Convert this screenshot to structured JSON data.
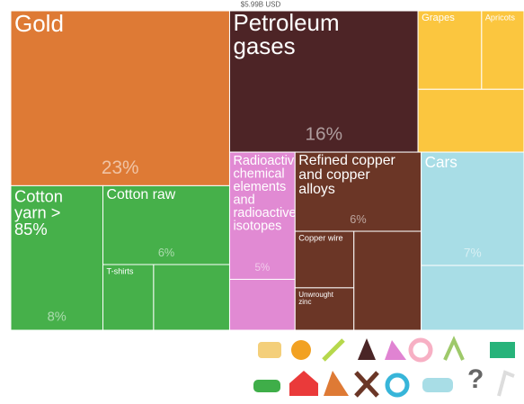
{
  "chart_data": {
    "type": "treemap",
    "subtitle": "$5.99B USD",
    "groups": [
      {
        "color": "#de7a35",
        "tiles": [
          {
            "label": "Gold",
            "value": 23,
            "value_label": "23%"
          }
        ]
      },
      {
        "color": "#46b04a",
        "tiles": [
          {
            "label": "Cotton yarn > 85%",
            "value": 8,
            "value_label": "8%"
          },
          {
            "label": "Cotton raw",
            "value": 6,
            "value_label": "6%"
          },
          {
            "label": "T-shirts",
            "value": 2,
            "value_label": null
          },
          {
            "label": null,
            "value": 3,
            "value_label": null
          }
        ]
      },
      {
        "color": "#4d2426",
        "tiles": [
          {
            "label": "Petroleum gases",
            "value": 16,
            "value_label": "16%"
          }
        ]
      },
      {
        "color": "#fbc63f",
        "tiles": [
          {
            "label": "Grapes",
            "value": 3,
            "value_label": null
          },
          {
            "label": "Apricots",
            "value": 2,
            "value_label": null
          },
          {
            "label": null,
            "value": 4,
            "value_label": null
          }
        ]
      },
      {
        "color": "#e18ad3",
        "tiles": [
          {
            "label": "Radioactive chemical elements and radioactive isotopes",
            "value": 5,
            "value_label": "5%"
          },
          {
            "label": null,
            "value": 2,
            "value_label": null
          }
        ]
      },
      {
        "color": "#6b3626",
        "tiles": [
          {
            "label": "Refined copper and copper alloys",
            "value": 6,
            "value_label": "6%"
          },
          {
            "label": "Copper wire",
            "value": 2,
            "value_label": null
          },
          {
            "label": "Unwrought zinc",
            "value": 1.5,
            "value_label": null
          },
          {
            "label": null,
            "value": 4,
            "value_label": null
          }
        ]
      },
      {
        "color": "#a8dde6",
        "tiles": [
          {
            "label": "Cars",
            "value": 7,
            "value_label": "7%"
          },
          {
            "label": null,
            "value": 4,
            "value_label": null
          }
        ]
      }
    ]
  }
}
